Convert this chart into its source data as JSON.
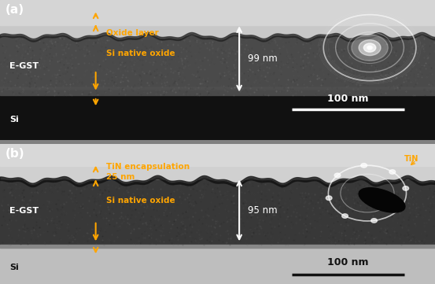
{
  "fig_width": 5.53,
  "fig_height": 3.61,
  "dpi": 100,
  "panel_a_label": "(a)",
  "panel_b_label": "(b)",
  "panel_a_egst_label": "E-GST",
  "panel_a_si_label": "Si",
  "panel_b_egst_label": "E-GST",
  "panel_b_si_label": "Si",
  "panel_a_oxide_label": "Oxide layer",
  "panel_a_native_oxide": "Si native oxide",
  "panel_a_thickness": "99 nm",
  "panel_b_tin_label": "TiN encapsulation\n25 nm",
  "panel_b_native_oxide": "Si native oxide",
  "panel_b_thickness": "95 nm",
  "scale_bar_label": "100 nm",
  "panel_b_tin_inset": "TiN",
  "yellow_color": "#FFA500",
  "white_color": "#ffffff"
}
